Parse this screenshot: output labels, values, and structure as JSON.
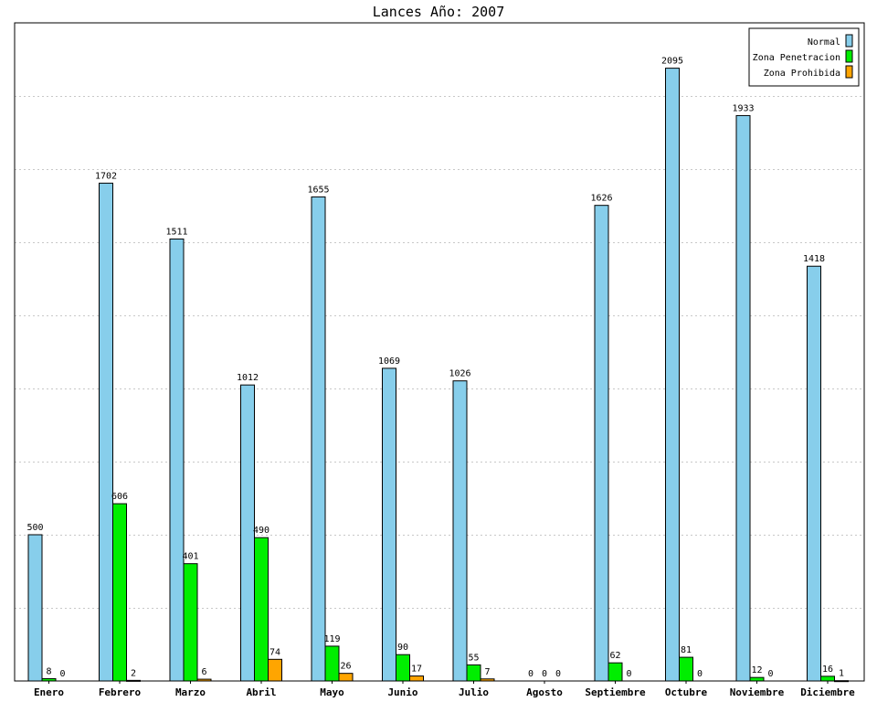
{
  "chart_data": {
    "type": "bar",
    "title": "Lances Año: 2007",
    "xlabel": "",
    "ylabel": "",
    "ylim": [
      0,
      2250
    ],
    "y_gridline_step": 250,
    "grid": true,
    "legend_position": "top-right",
    "categories": [
      "Enero",
      "Febrero",
      "Marzo",
      "Abril",
      "Mayo",
      "Junio",
      "Julio",
      "Agosto",
      "Septiembre",
      "Octubre",
      "Noviembre",
      "Diciembre"
    ],
    "series": [
      {
        "name": "Normal",
        "color": "#87ceeb",
        "values": [
          500,
          1702,
          1511,
          1012,
          1655,
          1069,
          1026,
          0,
          1626,
          2095,
          1933,
          1418
        ]
      },
      {
        "name": "Zona Penetracion",
        "color": "#00ee00",
        "values": [
          8,
          606,
          401,
          490,
          119,
          90,
          55,
          0,
          62,
          81,
          12,
          16
        ]
      },
      {
        "name": "Zona Prohibida",
        "color": "#ffa500",
        "values": [
          0,
          2,
          6,
          74,
          26,
          17,
          7,
          0,
          0,
          0,
          0,
          1
        ]
      }
    ]
  }
}
